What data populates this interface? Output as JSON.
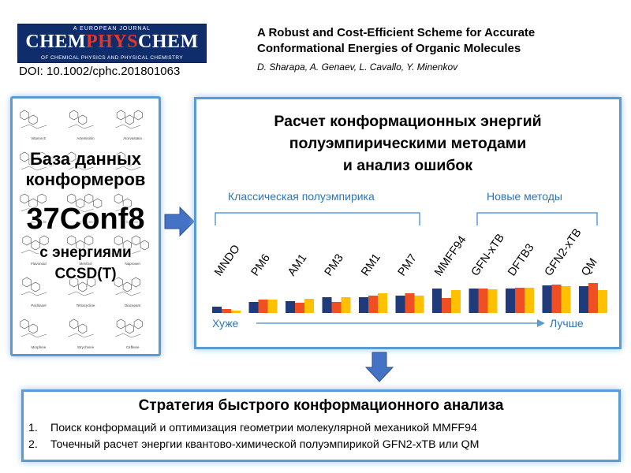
{
  "journal": {
    "top": "A EUROPEAN JOURNAL",
    "name_left": "CHEM",
    "name_mid": "PHYS",
    "name_right": "CHEM",
    "bottom": "OF CHEMICAL PHYSICS AND PHYSICAL CHEMISTRY",
    "doi": "DOI: 10.1002/cphc.201801063"
  },
  "paper": {
    "title_line1": "A Robust and Cost-Efficient Scheme for Accurate",
    "title_line2": "Conformational Energies of Organic Molecules",
    "authors": "D. Sharapa, A. Genaev, L. Cavallo, Y. Minenkov"
  },
  "left_panel": {
    "line1": "База данных",
    "line2": "конформеров",
    "line3": "37Conf8",
    "line4": "с энергиями",
    "line5": "CCSD(T)",
    "molecule_labels": [
      "Vitamin E",
      "Artemisinin",
      "Atorvastatin",
      "Aripiprazole",
      "Capsaicin",
      "Cocaine",
      "Glucoside",
      "Epothilone",
      "Ibuprofen",
      "Flavonoid",
      "Menthol",
      "Naproxen",
      "Paclitaxel",
      "Tetracycline",
      "Diazepam",
      "Morphine",
      "Strychnine",
      "Caffeine"
    ]
  },
  "chart_data": {
    "type": "bar",
    "title": "Расчет конформационных энергий полуэмпирическими методами и анализ ошибок",
    "title_lines": [
      "Расчет конформационных энергий",
      "полуэмпирическими методами",
      "и анализ ошибок"
    ],
    "group_left": "Классическая полуэмпирика",
    "group_right": "Новые методы",
    "axis_left": "Хуже",
    "axis_right": "Лучше",
    "categories": [
      "MNDO",
      "PM6",
      "AM1",
      "PM3",
      "RM1",
      "PM7",
      "MMFF94",
      "GFN-xTB",
      "DFTB3",
      "GFN2-xTB",
      "QM"
    ],
    "series": [
      {
        "values": [
          8,
          14,
          15,
          20,
          20,
          22,
          31,
          31,
          31,
          35,
          34
        ]
      },
      {
        "values": [
          5,
          17,
          13,
          14,
          22,
          25,
          19,
          31,
          32,
          36,
          38
        ]
      },
      {
        "values": [
          3,
          17,
          18,
          20,
          25,
          22,
          29,
          30,
          32,
          34,
          29
        ]
      }
    ],
    "ylim": [
      0,
      40
    ],
    "colors": [
      "#1f3b7a",
      "#f04e23",
      "#ffc000"
    ]
  },
  "bottom_panel": {
    "title": "Стратегия быстрого конформационного анализа",
    "items": [
      {
        "num": "1.",
        "text": "Поиск конформаций и оптимизация геометрии молекулярной механикой MMFF94"
      },
      {
        "num": "2.",
        "text": "Точечный расчет энергии квантово-химической полуэмпирикой GFN2-xTB или QM"
      }
    ]
  },
  "colors": {
    "panel_border": "#5b9bd5",
    "arrow_fill": "#4472c4",
    "group_text": "#2e75b6",
    "logo_bg": "#0f2d6b",
    "logo_accent": "#e5362a"
  }
}
